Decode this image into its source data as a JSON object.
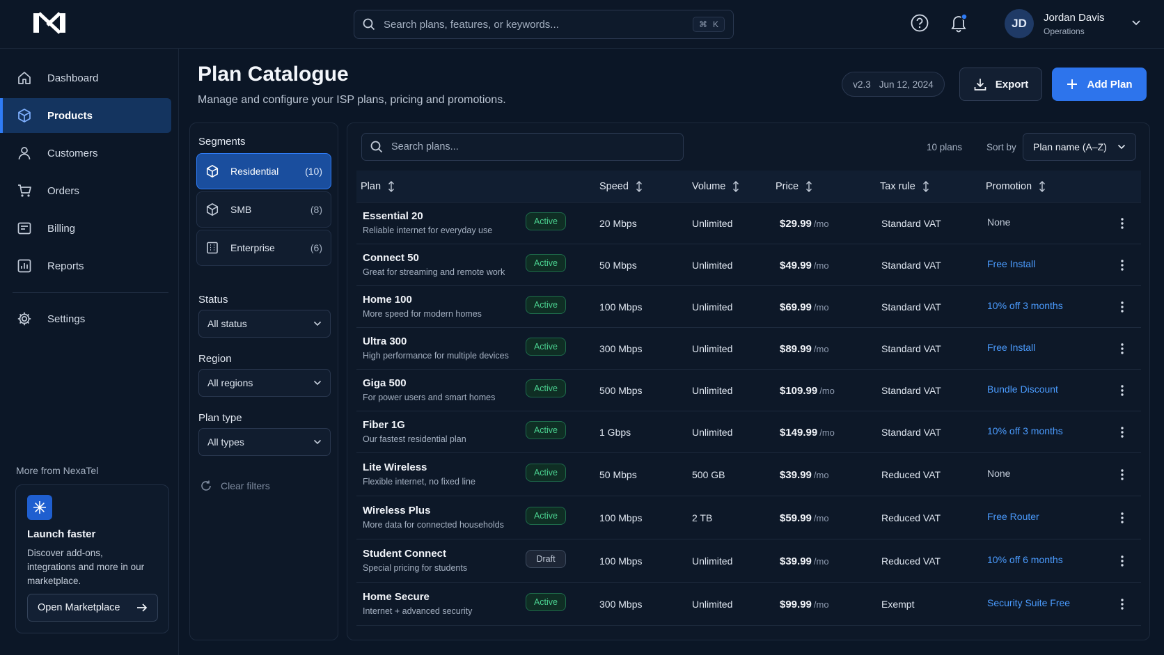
{
  "topbar": {
    "search_placeholder": "Search plans, features, or keywords...",
    "shortcut_cmd": "⌘",
    "shortcut_key": "K",
    "user": {
      "initials": "JD",
      "name": "Jordan Davis",
      "role": "Operations"
    }
  },
  "sidebar": {
    "items": [
      {
        "label": "Dashboard",
        "icon": "home-icon",
        "active": false
      },
      {
        "label": "Products",
        "icon": "box-icon",
        "active": true
      },
      {
        "label": "Customers",
        "icon": "user-icon",
        "active": false
      },
      {
        "label": "Orders",
        "icon": "cart-icon",
        "active": false
      },
      {
        "label": "Billing",
        "icon": "billing-icon",
        "active": false
      },
      {
        "label": "Reports",
        "icon": "chart-icon",
        "active": false
      }
    ],
    "settings_label": "Settings",
    "more_title": "More from NexaTel",
    "promo": {
      "title": "Launch faster",
      "desc": "Discover add-ons, integrations and more in our marketplace.",
      "button": "Open Marketplace"
    }
  },
  "header": {
    "title": "Plan Catalogue",
    "subtitle": "Manage and configure your ISP plans, pricing and promotions.",
    "version": "v2.3",
    "date": "Jun 12, 2024",
    "export_label": "Export",
    "add_label": "Add Plan"
  },
  "filters": {
    "segments_title": "Segments",
    "segments": [
      {
        "name": "Residential",
        "count": "(10)",
        "active": true
      },
      {
        "name": "SMB",
        "count": "(8)",
        "active": false
      },
      {
        "name": "Enterprise",
        "count": "(6)",
        "active": false
      }
    ],
    "status_label": "Status",
    "status_value": "All status",
    "region_label": "Region",
    "region_value": "All regions",
    "type_label": "Plan type",
    "type_value": "All types",
    "clear_label": "Clear filters"
  },
  "table": {
    "search_placeholder": "Search plans...",
    "count_label": "10 plans",
    "sort_label": "Sort by",
    "sort_value": "Plan name (A–Z)",
    "columns": [
      "Plan",
      "Speed",
      "Volume",
      "Price",
      "Tax rule",
      "Promotion"
    ],
    "rows": [
      {
        "name": "Essential 20",
        "desc": "Reliable internet for everyday use",
        "status": "Active",
        "speed": "20 Mbps",
        "volume": "Unlimited",
        "price": "$29.99",
        "per": "/mo",
        "tax": "Standard VAT",
        "promo": "None"
      },
      {
        "name": "Connect 50",
        "desc": "Great for streaming and remote work",
        "status": "Active",
        "speed": "50 Mbps",
        "volume": "Unlimited",
        "price": "$49.99",
        "per": "/mo",
        "tax": "Standard VAT",
        "promo": "Free Install"
      },
      {
        "name": "Home 100",
        "desc": "More speed for modern homes",
        "status": "Active",
        "speed": "100 Mbps",
        "volume": "Unlimited",
        "price": "$69.99",
        "per": "/mo",
        "tax": "Standard VAT",
        "promo": "10% off 3 months"
      },
      {
        "name": "Ultra 300",
        "desc": "High performance for multiple devices",
        "status": "Active",
        "speed": "300 Mbps",
        "volume": "Unlimited",
        "price": "$89.99",
        "per": "/mo",
        "tax": "Standard VAT",
        "promo": "Free Install"
      },
      {
        "name": "Giga 500",
        "desc": "For power users and smart homes",
        "status": "Active",
        "speed": "500 Mbps",
        "volume": "Unlimited",
        "price": "$109.99",
        "per": "/mo",
        "tax": "Standard VAT",
        "promo": "Bundle Discount"
      },
      {
        "name": "Fiber 1G",
        "desc": "Our fastest residential plan",
        "status": "Active",
        "speed": "1 Gbps",
        "volume": "Unlimited",
        "price": "$149.99",
        "per": "/mo",
        "tax": "Standard VAT",
        "promo": "10% off 3 months"
      },
      {
        "name": "Lite Wireless",
        "desc": "Flexible internet, no fixed line",
        "status": "Active",
        "speed": "50 Mbps",
        "volume": "500 GB",
        "price": "$39.99",
        "per": "/mo",
        "tax": "Reduced VAT",
        "promo": "None"
      },
      {
        "name": "Wireless Plus",
        "desc": "More data for connected households",
        "status": "Active",
        "speed": "100 Mbps",
        "volume": "2 TB",
        "price": "$59.99",
        "per": "/mo",
        "tax": "Reduced VAT",
        "promo": "Free Router"
      },
      {
        "name": "Student Connect",
        "desc": "Special pricing for students",
        "status": "Draft",
        "speed": "100 Mbps",
        "volume": "Unlimited",
        "price": "$39.99",
        "per": "/mo",
        "tax": "Reduced VAT",
        "promo": "10% off 6 months"
      },
      {
        "name": "Home Secure",
        "desc": "Internet + advanced security",
        "status": "Active",
        "speed": "300 Mbps",
        "volume": "Unlimited",
        "price": "$99.99",
        "per": "/mo",
        "tax": "Exempt",
        "promo": "Security Suite Free"
      }
    ]
  },
  "colors": {
    "background": "#0b1626",
    "accent": "#2d74ec",
    "active_status": "#4ad08f",
    "promo_link": "#4b9cff"
  }
}
